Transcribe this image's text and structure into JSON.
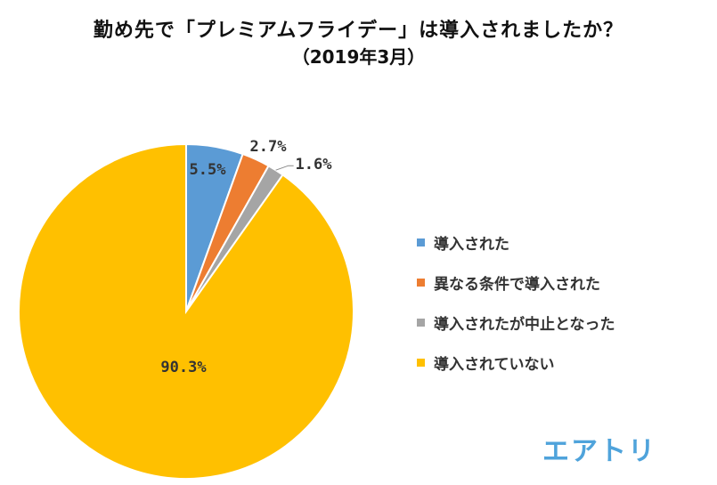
{
  "chart_data": {
    "type": "pie",
    "title": "勤め先で「プレミアムフライデー」は導入されましたか？",
    "subtitle": "（2019年3月）",
    "slices": [
      {
        "label": "導入された",
        "value": 5.5,
        "display": "5.5%",
        "color": "#5B9BD5"
      },
      {
        "label": "異なる条件で導入された",
        "value": 2.7,
        "display": "2.7%",
        "color": "#ED7D31"
      },
      {
        "label": "導入されたが中止となった",
        "value": 1.6,
        "display": "1.6%",
        "color": "#A5A5A5"
      },
      {
        "label": "導入されていない",
        "value": 90.3,
        "display": "90.3%",
        "color": "#FFC000"
      }
    ],
    "start_angle": "12 o'clock",
    "direction": "clockwise",
    "legend_position": "right"
  },
  "logo": {
    "text": "エアトリ",
    "color": "#4FA3DB"
  }
}
